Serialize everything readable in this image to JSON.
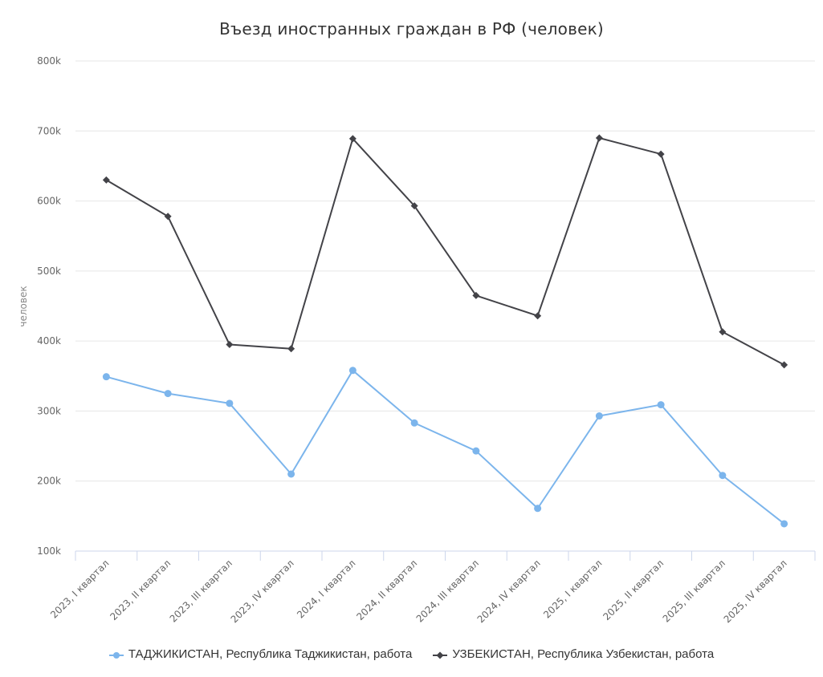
{
  "chart_data": {
    "type": "line",
    "title": "Въезд иностранных граждан в РФ (человек)",
    "xlabel": "",
    "ylabel": "человек",
    "ylim": [
      100000,
      800000
    ],
    "yticks": [
      "100k",
      "200k",
      "300k",
      "400k",
      "500k",
      "600k",
      "700k",
      "800k"
    ],
    "ytick_values": [
      100000,
      200000,
      300000,
      400000,
      500000,
      600000,
      700000,
      800000
    ],
    "grid": true,
    "legend_position": "bottom",
    "categories": [
      "2023, I квартал",
      "2023, II квартал",
      "2023, III квартал",
      "2023, IV квартал",
      "2024, I квартал",
      "2024, II квартал",
      "2024, III квартал",
      "2024, IV квартал",
      "2025, I квартал",
      "2025, II квартал",
      "2025, III квартал",
      "2025, IV квартал"
    ],
    "series": [
      {
        "name": "ТАДЖИКИСТАН, Республика Таджикистан, работа",
        "color": "#7cb5ec",
        "marker": "circle",
        "values": [
          349000,
          325000,
          311000,
          210000,
          358000,
          283000,
          243000,
          161000,
          293000,
          309000,
          208000,
          139000
        ]
      },
      {
        "name": "УЗБЕКИСТАН, Республика Узбекистан, работа",
        "color": "#434348",
        "marker": "diamond",
        "values": [
          630000,
          578000,
          395000,
          389000,
          689000,
          593000,
          465000,
          436000,
          690000,
          667000,
          413000,
          366000
        ]
      }
    ]
  }
}
